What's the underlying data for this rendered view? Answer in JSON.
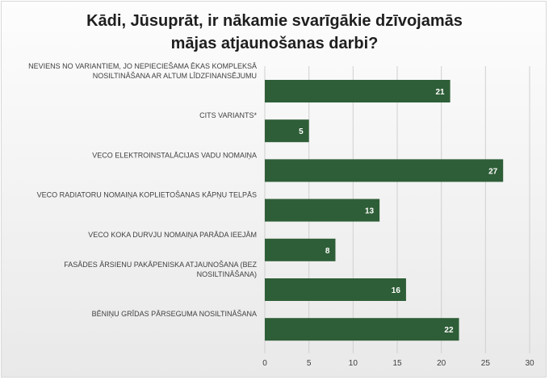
{
  "chart_data": {
    "type": "bar",
    "orientation": "horizontal",
    "title_lines": [
      "Kādi, Jūsuprāt, ir nākamie svarīgākie dzīvojamās",
      "mājas atjaunošanas darbi?"
    ],
    "categories": [
      [
        "NEVIENS NO VARIANTIEM, JO NEPIECIEŠAMA ĒKAS KOMPLEKSĀ",
        "NOSILTINĀŠANA AR ALTUM LĪDZFINANSĒJUMU"
      ],
      [
        "CITS VARIANTS*"
      ],
      [
        "VECO ELEKTROINSTALĀCIJAS VADU NOMAIŅA"
      ],
      [
        "VECO RADIATORU NOMAIŅA KOPLIETOŠANAS KĀPŅU TELPĀS"
      ],
      [
        "VECO KOKA DURVJU NOMAIŅA PARĀDA IEEJĀM"
      ],
      [
        "FASĀDES ĀRSIENU PAKĀPENISKA ATJAUNOŠANA (BEZ",
        "NOSILTINĀŠANA)"
      ],
      [
        "BĒNIŅU GRĪDAS PĀRSEGUMA NOSILTINĀŠANA"
      ]
    ],
    "values": [
      21,
      5,
      27,
      13,
      8,
      16,
      22
    ],
    "xlim": [
      0,
      30
    ],
    "x_ticks": [
      0,
      5,
      10,
      15,
      20,
      25,
      30
    ],
    "grid": true,
    "bar_color": "#2e5e37",
    "label_color": "#ffffff"
  }
}
